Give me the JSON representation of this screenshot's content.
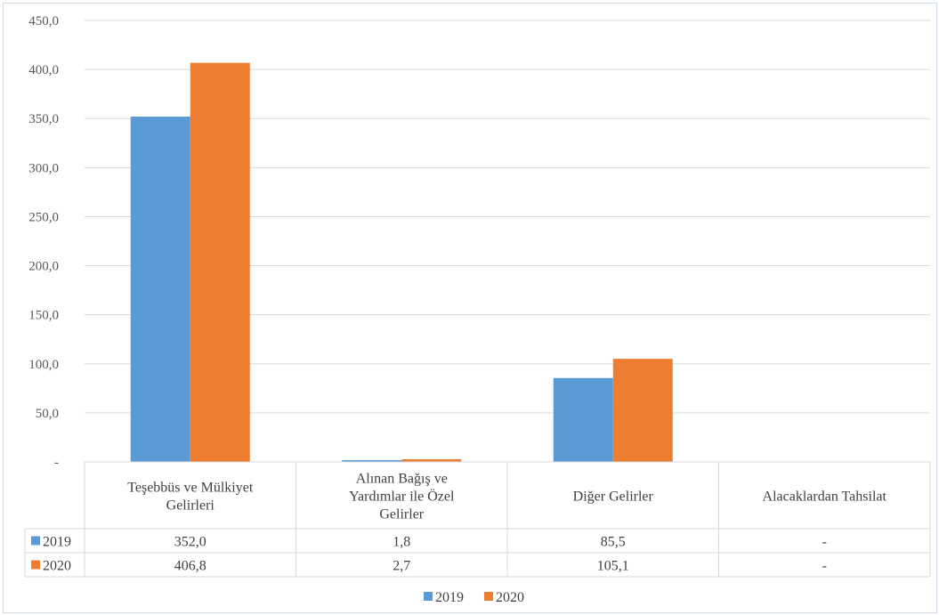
{
  "chart_data": {
    "type": "bar",
    "categories": [
      [
        "Teşebbüs ve Mülkiyet",
        "Gelirleri"
      ],
      [
        "Alınan Bağış ve",
        "Yardımlar ile Özel",
        "Gelirler"
      ],
      [
        "Diğer Gelirler"
      ],
      [
        "Alacaklardan Tahsilat"
      ]
    ],
    "series": [
      {
        "name": "2019",
        "color": "#5b9bd5",
        "values": [
          352.0,
          1.8,
          85.5,
          0
        ],
        "labels": [
          "352,0",
          "1,8",
          "85,5",
          "-"
        ]
      },
      {
        "name": "2020",
        "color": "#ed7d31",
        "values": [
          406.8,
          2.7,
          105.1,
          0
        ],
        "labels": [
          "406,8",
          "2,7",
          "105,1",
          "-"
        ]
      }
    ],
    "yticks": [
      "-",
      "50,0",
      "100,0",
      "150,0",
      "200,0",
      "250,0",
      "300,0",
      "350,0",
      "400,0",
      "450,0"
    ],
    "ylim": [
      0,
      450
    ],
    "grid": true,
    "legend": "bottom",
    "data_table": true
  }
}
